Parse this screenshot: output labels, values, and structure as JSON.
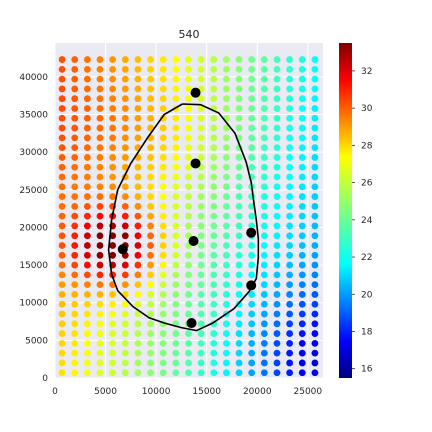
{
  "chart_data": {
    "type": "scatter",
    "title": "540",
    "xlabel": "",
    "ylabel": "",
    "xlim": [
      0,
      26500
    ],
    "ylim": [
      0,
      44500
    ],
    "x_ticks": [
      0,
      5000,
      10000,
      15000,
      20000,
      25000
    ],
    "y_ticks": [
      0,
      5000,
      10000,
      15000,
      20000,
      25000,
      30000,
      35000,
      40000
    ],
    "grid": true,
    "colormap": "jet",
    "colorbar": {
      "min": 15.5,
      "max": 33.5,
      "ticks": [
        16,
        18,
        20,
        22,
        24,
        26,
        28,
        30,
        32
      ]
    },
    "field": {
      "x_start": 700,
      "x_step": 1250,
      "nx": 21,
      "y_start": 700,
      "y_step": 1300,
      "ny": 33
    },
    "hot_spot": {
      "x": 6000,
      "y": 17500,
      "peak": 33,
      "sx": 4200,
      "sy": 5000
    },
    "warm_band": {
      "x": 8000,
      "y": 32000,
      "level": 27
    },
    "cool_corner": {
      "x": 25000,
      "y": 3000,
      "level": 16
    },
    "markers": [
      {
        "x": 13900,
        "y": 37900
      },
      {
        "x": 13900,
        "y": 28500
      },
      {
        "x": 13700,
        "y": 18200
      },
      {
        "x": 6700,
        "y": 17100
      },
      {
        "x": 19400,
        "y": 19300
      },
      {
        "x": 19400,
        "y": 12300
      },
      {
        "x": 13500,
        "y": 7300
      }
    ],
    "contour": [
      [
        12600,
        36400
      ],
      [
        14400,
        36300
      ],
      [
        16200,
        35200
      ],
      [
        17800,
        32500
      ],
      [
        18900,
        28700
      ],
      [
        19400,
        26000
      ],
      [
        19700,
        23000
      ],
      [
        19900,
        21000
      ],
      [
        20100,
        18500
      ],
      [
        20100,
        16000
      ],
      [
        19900,
        13200
      ],
      [
        19200,
        11500
      ],
      [
        17700,
        9200
      ],
      [
        15600,
        7300
      ],
      [
        14000,
        6300
      ],
      [
        12500,
        6700
      ],
      [
        10800,
        7300
      ],
      [
        9300,
        8000
      ],
      [
        7700,
        9500
      ],
      [
        6200,
        11600
      ],
      [
        5600,
        13800
      ],
      [
        5300,
        17000
      ],
      [
        5600,
        21000
      ],
      [
        6200,
        25000
      ],
      [
        7500,
        28500
      ],
      [
        9200,
        32000
      ],
      [
        10800,
        35000
      ],
      [
        12600,
        36400
      ]
    ]
  }
}
